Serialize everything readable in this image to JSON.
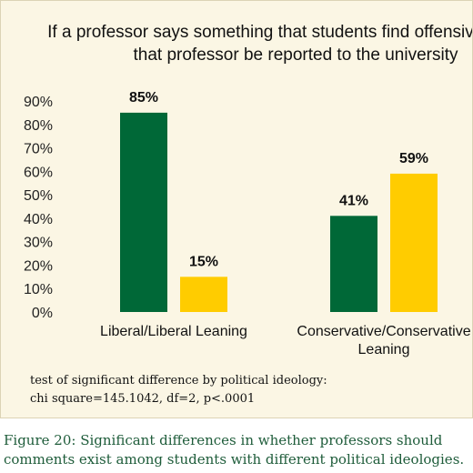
{
  "chart_data": {
    "type": "bar",
    "title": "If a professor says something that students find offensive, should\nthat professor be reported to the university",
    "categories": [
      "Liberal/Liberal Leaning",
      "Conservative/Conservative\nLeaning"
    ],
    "category_lines": [
      [
        "Liberal/Liberal Leaning"
      ],
      [
        "Conservative/Conservative",
        "Leaning"
      ]
    ],
    "series": [
      {
        "values": [
          85,
          41
        ],
        "labels": [
          "85%",
          "41%"
        ],
        "color": "#006837"
      },
      {
        "values": [
          15,
          59
        ],
        "labels": [
          "15%",
          "59%"
        ],
        "color": "#ffcc00"
      }
    ],
    "y_ticks": [
      "0%",
      "10%",
      "20%",
      "30%",
      "40%",
      "50%",
      "60%",
      "70%",
      "80%",
      "90%"
    ],
    "ylim": [
      0,
      90
    ],
    "xlabel": "",
    "ylabel": "",
    "grid": false,
    "legend": "none"
  },
  "note": {
    "line1": "test of significant difference by political ideology:",
    "line2": "chi square=145.1042, df=2, p<.0001"
  },
  "caption": {
    "line1": "Figure 20: Significant differences in whether professors should",
    "line2": "comments exist among students with different political ideologies."
  },
  "colors": {
    "panel_background": "#fbf6e4",
    "caption_text": "#1e5c3a"
  }
}
